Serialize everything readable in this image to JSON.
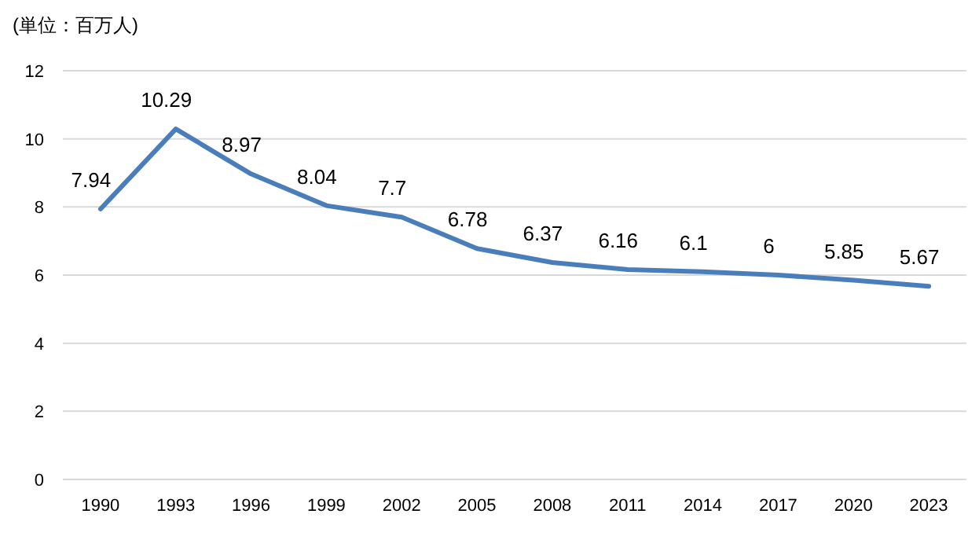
{
  "chart_data": {
    "type": "line",
    "ylabel": "(単位：百万人)",
    "categories": [
      "1990",
      "1993",
      "1996",
      "1999",
      "2002",
      "2005",
      "2008",
      "2011",
      "2014",
      "2017",
      "2020",
      "2023"
    ],
    "values": [
      7.94,
      10.29,
      8.97,
      8.04,
      7.7,
      6.78,
      6.37,
      6.16,
      6.1,
      6,
      5.85,
      5.67
    ],
    "color": "#4a7ebb",
    "ylim": [
      0,
      12
    ],
    "yticks": [
      0,
      2,
      4,
      6,
      8,
      10,
      12
    ],
    "grid": "y",
    "data_labels": true
  }
}
